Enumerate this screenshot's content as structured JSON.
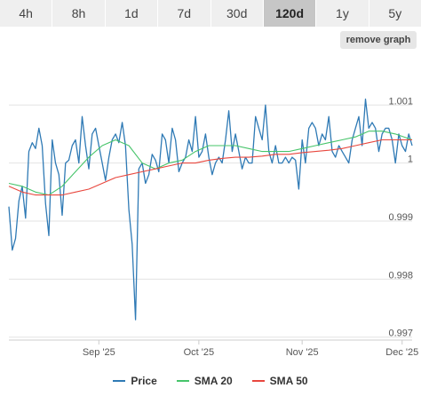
{
  "range_tabs": [
    {
      "label": "4h",
      "active": false
    },
    {
      "label": "8h",
      "active": false
    },
    {
      "label": "1d",
      "active": false
    },
    {
      "label": "7d",
      "active": false
    },
    {
      "label": "30d",
      "active": false
    },
    {
      "label": "120d",
      "active": true
    },
    {
      "label": "1y",
      "active": false
    },
    {
      "label": "5y",
      "active": false
    }
  ],
  "remove_graph_label": "remove graph",
  "colors": {
    "price": "#2f7ab5",
    "sma20": "#46c46a",
    "sma50": "#e8473e",
    "grid": "#e3e3e3",
    "axis_text": "#555555"
  },
  "chart_data": {
    "type": "line",
    "title": "",
    "xlabel": "",
    "ylabel": "",
    "ylim": [
      0.99695,
      1.00183
    ],
    "yticks": [
      0.997,
      0.998,
      0.999,
      1,
      1.001
    ],
    "ytick_labels": [
      "0.997",
      "0.998",
      "0.999",
      "1",
      "1.001"
    ],
    "xticks": [
      {
        "label": "Sep '25",
        "x": 27
      },
      {
        "label": "Oct '25",
        "x": 57
      },
      {
        "label": "Nov '25",
        "x": 88
      },
      {
        "label": "Dec '25",
        "x": 118
      }
    ],
    "xlim": [
      0,
      121
    ],
    "grid": true,
    "legend_position": "bottom",
    "series": [
      {
        "name": "Price",
        "x": [
          0,
          1,
          2,
          3,
          4,
          5,
          6,
          7,
          8,
          9,
          10,
          11,
          12,
          13,
          14,
          15,
          16,
          17,
          18,
          19,
          20,
          21,
          22,
          23,
          24,
          25,
          26,
          27,
          28,
          29,
          30,
          31,
          32,
          33,
          34,
          35,
          36,
          37,
          38,
          39,
          40,
          41,
          42,
          43,
          44,
          45,
          46,
          47,
          48,
          49,
          50,
          51,
          52,
          53,
          54,
          55,
          56,
          57,
          58,
          59,
          60,
          61,
          62,
          63,
          64,
          65,
          66,
          67,
          68,
          69,
          70,
          71,
          72,
          73,
          74,
          75,
          76,
          77,
          78,
          79,
          80,
          81,
          82,
          83,
          84,
          85,
          86,
          87,
          88,
          89,
          90,
          91,
          92,
          93,
          94,
          95,
          96,
          97,
          98,
          99,
          100,
          101,
          102,
          103,
          104,
          105,
          106,
          107,
          108,
          109,
          110,
          111,
          112,
          113,
          114,
          115,
          116,
          117,
          118,
          119,
          120,
          121
        ],
        "values": [
          0.99925,
          0.9985,
          0.9987,
          0.99935,
          0.9996,
          0.99905,
          1.0002,
          1.00035,
          1.00025,
          1.0006,
          1.0003,
          0.9993,
          0.99875,
          1.0004,
          1.0,
          0.9998,
          0.9991,
          1.0,
          1.00005,
          1.0003,
          1.0004,
          1.0,
          1.0008,
          1.0003,
          0.9999,
          1.0005,
          1.0006,
          1.0003,
          1.0,
          0.9997,
          1.0001,
          1.0004,
          1.0005,
          1.00035,
          1.0007,
          1.0003,
          0.9992,
          0.9986,
          0.9973,
          0.9999,
          1.0,
          0.99965,
          0.9998,
          1.00015,
          1.00005,
          0.99985,
          1.0005,
          1.0004,
          1.0,
          1.0006,
          1.0004,
          0.99985,
          1.0,
          1.0001,
          1.0004,
          1.0002,
          1.0008,
          1.0001,
          1.0002,
          1.0005,
          1.0001,
          0.9998,
          1.0,
          1.0001,
          1.0,
          1.0004,
          1.0009,
          1.0002,
          1.0005,
          1.0002,
          0.9999,
          1.0001,
          1.0,
          1.0,
          1.0008,
          1.0006,
          1.0004,
          1.001,
          1.0002,
          1.0,
          1.0003,
          1.0,
          1.0,
          1.0001,
          1.0,
          1.0001,
          1.00005,
          0.99955,
          1.0004,
          1.0,
          1.0006,
          1.0007,
          1.0006,
          1.0003,
          1.0005,
          1.0004,
          1.0008,
          1.0002,
          1.0001,
          1.0003,
          1.0002,
          1.0001,
          1.0,
          1.0004,
          1.0006,
          1.0008,
          1.0003,
          1.0011,
          1.0006,
          1.0007,
          1.0006,
          1.0002,
          1.0005,
          1.0006,
          1.0006,
          1.0004,
          1.0,
          1.0005,
          1.0003,
          1.0002,
          1.0005,
          1.0003
        ]
      },
      {
        "name": "SMA 20",
        "x": [
          0,
          4,
          8,
          12,
          16,
          20,
          24,
          28,
          32,
          36,
          40,
          44,
          48,
          52,
          56,
          60,
          64,
          68,
          72,
          76,
          80,
          84,
          88,
          92,
          96,
          100,
          104,
          108,
          112,
          116,
          121
        ],
        "values": [
          0.99965,
          0.9996,
          0.9995,
          0.99945,
          0.9996,
          0.99985,
          1.0001,
          1.0003,
          1.0004,
          1.0003,
          1.0,
          0.9999,
          1.0,
          1.00005,
          1.0002,
          1.0003,
          1.0003,
          1.0003,
          1.00025,
          1.0002,
          1.0002,
          1.0002,
          1.00025,
          1.0003,
          1.00035,
          1.0004,
          1.00045,
          1.00055,
          1.00055,
          1.0005,
          1.0004
        ]
      },
      {
        "name": "SMA 50",
        "x": [
          0,
          4,
          8,
          12,
          16,
          20,
          24,
          28,
          32,
          36,
          40,
          44,
          48,
          52,
          56,
          60,
          64,
          68,
          72,
          76,
          80,
          84,
          88,
          92,
          96,
          100,
          104,
          108,
          112,
          116,
          121
        ],
        "values": [
          0.9996,
          0.9995,
          0.99945,
          0.99945,
          0.99945,
          0.9995,
          0.99955,
          0.99965,
          0.99975,
          0.9998,
          0.99985,
          0.9999,
          0.99995,
          1.0,
          1.0,
          1.00005,
          1.00008,
          1.0001,
          1.0001,
          1.00012,
          1.00015,
          1.00015,
          1.00018,
          1.0002,
          1.00022,
          1.00025,
          1.0003,
          1.00035,
          1.0004,
          1.0004,
          1.0004
        ]
      }
    ]
  }
}
